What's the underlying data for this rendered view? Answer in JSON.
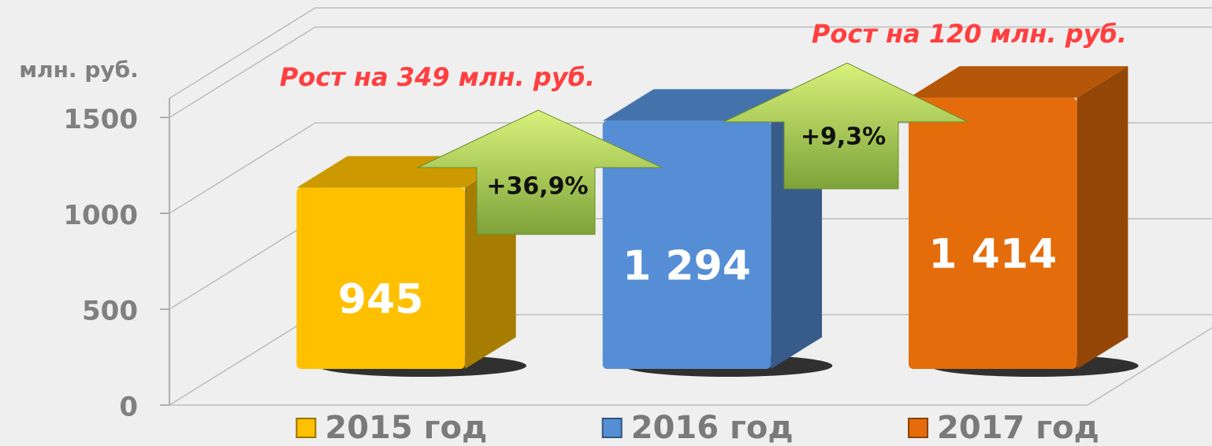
{
  "chart_data": {
    "type": "bar",
    "y_unit_label": "млн. руб.",
    "categories": [
      "2015 год",
      "2016 год",
      "2017 год"
    ],
    "values": [
      945,
      1294,
      1414
    ],
    "value_labels": [
      "945",
      "1 294",
      "1 414"
    ],
    "colors": [
      "#ffc000",
      "#558ed5",
      "#e46c0a"
    ],
    "annotations": [
      "Рост на 349 млн. руб.",
      "+36,9%",
      "Рост на 120 млн. руб.",
      "+9,3%"
    ],
    "ylim": [
      0,
      1600
    ],
    "yticks": [
      0,
      500,
      1000,
      1500
    ],
    "grid": true,
    "legend": "bottom"
  }
}
